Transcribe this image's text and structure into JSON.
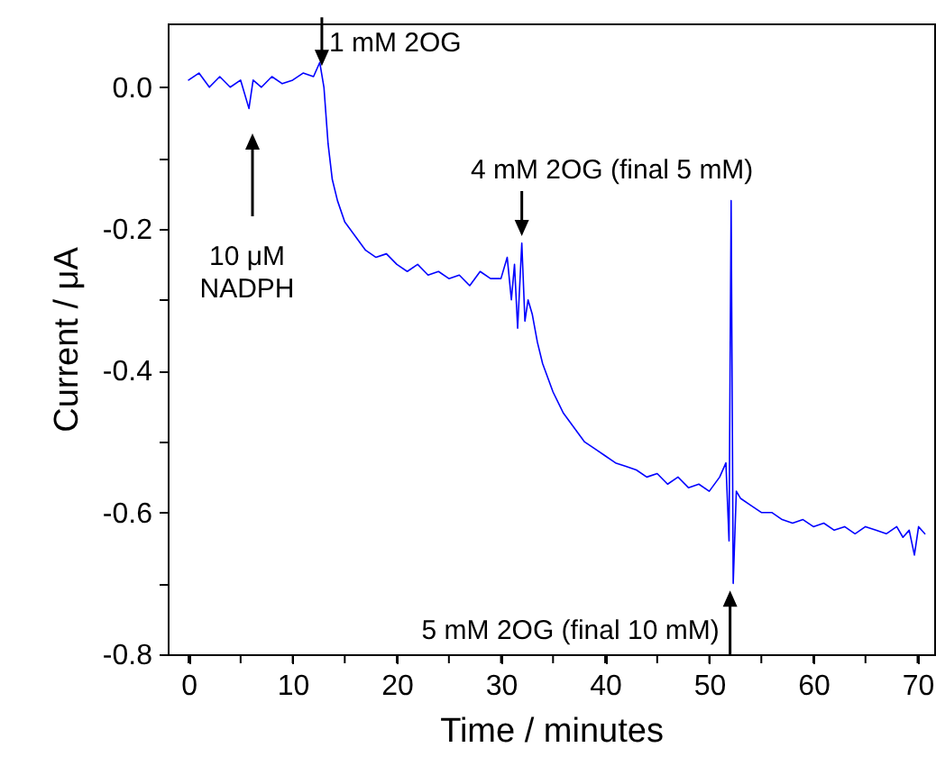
{
  "chart_data": {
    "type": "line",
    "xlabel": "Time / minutes",
    "ylabel": "Current / μA",
    "xlim": [
      -2,
      71.6
    ],
    "ylim": [
      -0.8,
      0.09
    ],
    "xticks": [
      0,
      {
        "value": 5,
        "label": null
      },
      10,
      {
        "value": 15,
        "label": null
      },
      20,
      {
        "value": 25,
        "label": null
      },
      30,
      {
        "value": 35,
        "label": null
      },
      40,
      {
        "value": 45,
        "label": null
      },
      50,
      {
        "value": 55,
        "label": null
      },
      60,
      {
        "value": 65,
        "label": null
      },
      70
    ],
    "yticks": [
      -0.8,
      {
        "value": -0.7,
        "label": null
      },
      -0.6,
      {
        "value": -0.5,
        "label": null
      },
      -0.4,
      {
        "value": -0.3,
        "label": null
      },
      -0.2,
      {
        "value": -0.1,
        "label": null
      },
      {
        "value": 0,
        "label": "0.0"
      }
    ],
    "series": [
      {
        "color": "#0000ff",
        "x": [
          0,
          1,
          2,
          3,
          4,
          5,
          5.8,
          6.2,
          7,
          8,
          9,
          10,
          11,
          12,
          12.6,
          13,
          13.4,
          13.8,
          14.3,
          15,
          16,
          17,
          18,
          19,
          20,
          21,
          22,
          23,
          24,
          25,
          26,
          27,
          28,
          29,
          30,
          30.6,
          31,
          31.3,
          31.6,
          32,
          32.3,
          32.6,
          33,
          33.5,
          34,
          35,
          36,
          37,
          38,
          39,
          40,
          41,
          42,
          43,
          44,
          45,
          46,
          47,
          48,
          49,
          50,
          51,
          51.6,
          51.9,
          52.1,
          52.3,
          52.6,
          53,
          54,
          55,
          56,
          57,
          58,
          59,
          60,
          61,
          62,
          63,
          64,
          65,
          66,
          67,
          68,
          68.6,
          69.2,
          69.7,
          70.1,
          70.7
        ],
        "values": [
          0.01,
          0.02,
          0.0,
          0.015,
          0.0,
          0.01,
          -0.03,
          0.01,
          0.0,
          0.015,
          0.005,
          0.01,
          0.02,
          0.015,
          0.035,
          0.0,
          -0.08,
          -0.13,
          -0.16,
          -0.19,
          -0.21,
          -0.23,
          -0.24,
          -0.235,
          -0.25,
          -0.26,
          -0.25,
          -0.265,
          -0.26,
          -0.27,
          -0.265,
          -0.28,
          -0.26,
          -0.27,
          -0.27,
          -0.24,
          -0.3,
          -0.25,
          -0.34,
          -0.22,
          -0.33,
          -0.3,
          -0.32,
          -0.36,
          -0.39,
          -0.43,
          -0.46,
          -0.48,
          -0.5,
          -0.51,
          -0.52,
          -0.53,
          -0.535,
          -0.54,
          -0.55,
          -0.545,
          -0.56,
          -0.55,
          -0.565,
          -0.56,
          -0.57,
          -0.55,
          -0.53,
          -0.64,
          -0.16,
          -0.7,
          -0.57,
          -0.58,
          -0.59,
          -0.6,
          -0.6,
          -0.61,
          -0.615,
          -0.61,
          -0.62,
          -0.615,
          -0.625,
          -0.62,
          -0.63,
          -0.62,
          -0.625,
          -0.63,
          -0.62,
          -0.635,
          -0.625,
          -0.66,
          -0.62,
          -0.63
        ]
      }
    ],
    "annotations": [
      {
        "text": "1 mM 2OG",
        "x": 12.8,
        "y": 0.03
      },
      "10 μM\nNADPH",
      {
        "text": "4 mM 2OG (final 5 mM)",
        "x": 32,
        "y": -0.21
      },
      {
        "text": "5 mM 2OG (final 10 mM)",
        "x": 52,
        "y": -0.71
      }
    ]
  }
}
